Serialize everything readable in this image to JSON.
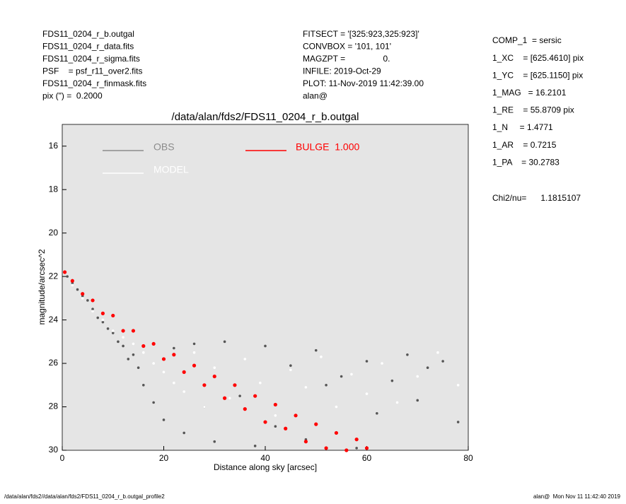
{
  "header": {
    "left": [
      "FDS11_0204_r_b.outgal",
      "FDS11_0204_r_data.fits",
      "FDS11_0204_r_sigma.fits",
      "PSF    = psf_r11_over2.fits",
      "FDS11_0204_r_finmask.fits",
      "pix (\") =  0.2000"
    ],
    "middle": [
      "FITSECT = '[325:923,325:923]'",
      "CONVBOX = '101, 101'",
      "MAGZPT =                0.",
      "INFILE: 2019-Oct-29",
      "PLOT: 11-Nov-2019 11:42:39.00",
      "alan@"
    ],
    "right": [
      "COMP_1  = sersic",
      "1_XC    = [625.4610] pix",
      "1_YC    = [625.1150] pix",
      "1_MAG   = 16.2101",
      "1_RE    = 55.8709 pix",
      "1_N     = 1.4771",
      "1_AR    = 0.7215",
      "1_PA    = 30.2783"
    ],
    "chi2": "Chi2/nu=      1.1815107"
  },
  "footer": {
    "left": "/data/alan/fds2//data/alan/fds2/FDS11_0204_r_b.outgal_profile2",
    "right": "alan@  Mon Nov 11 11:42:40 2019"
  },
  "chart_data": {
    "type": "scatter",
    "title": "/data/alan/fds2/FDS11_0204_r_b.outgal",
    "xlabel": "Distance along sky [arcsec]",
    "ylabel": "magnitude/arcsec^2",
    "xlim": [
      0,
      80
    ],
    "xticks": [
      0,
      20,
      40,
      60,
      80
    ],
    "ylim": [
      15,
      30
    ],
    "yticks": [
      16,
      18,
      20,
      22,
      24,
      26,
      28,
      30
    ],
    "y_inverted": true,
    "background": "#e5e5e5",
    "series": [
      {
        "name": "OBS",
        "color": "#555555",
        "legend_color": "#8c8c8c",
        "x": [
          1,
          2,
          3,
          4,
          5,
          6,
          7,
          8,
          9,
          10,
          11,
          12,
          13,
          14,
          15,
          16,
          18,
          20,
          22,
          24,
          26,
          28,
          30,
          32,
          35,
          38,
          40,
          42,
          45,
          48,
          50,
          52,
          55,
          58,
          60,
          62,
          65,
          68,
          70,
          72,
          75,
          78
        ],
        "values": [
          22.0,
          22.3,
          22.6,
          22.9,
          23.1,
          23.5,
          23.9,
          24.1,
          24.4,
          24.6,
          25.0,
          25.2,
          25.8,
          25.6,
          26.2,
          27.0,
          27.8,
          28.6,
          25.3,
          29.2,
          25.1,
          28.0,
          29.6,
          25.0,
          27.5,
          29.8,
          25.2,
          28.9,
          26.1,
          29.5,
          25.4,
          27.0,
          26.6,
          29.9,
          25.9,
          28.3,
          26.8,
          25.6,
          27.7,
          26.2,
          25.9,
          28.7
        ]
      },
      {
        "name": "MODEL",
        "color": "#ffffff",
        "legend_color": "#ffffff",
        "x": [
          2,
          4,
          6,
          8,
          10,
          12,
          14,
          16,
          18,
          20,
          22,
          24,
          26,
          28,
          30,
          33,
          36,
          39,
          42,
          45,
          48,
          51,
          54,
          57,
          60,
          63,
          66,
          70,
          74,
          78
        ],
        "values": [
          22.4,
          23.0,
          23.6,
          24.0,
          24.5,
          24.8,
          25.1,
          25.5,
          26.0,
          26.4,
          26.9,
          27.3,
          25.5,
          28.0,
          26.2,
          27.6,
          25.8,
          26.9,
          28.4,
          26.3,
          27.1,
          25.7,
          28.0,
          26.5,
          27.4,
          26.0,
          27.8,
          26.6,
          25.5,
          27.0
        ]
      },
      {
        "name": "BULGE  1.000",
        "color": "#ff0000",
        "legend_color": "#ff0000",
        "x": [
          0.5,
          2,
          4,
          6,
          8,
          10,
          12,
          14,
          16,
          18,
          20,
          22,
          24,
          26,
          28,
          30,
          32,
          34,
          36,
          38,
          40,
          42,
          44,
          46,
          48,
          50,
          52,
          54,
          56,
          58,
          60
        ],
        "values": [
          21.8,
          22.2,
          22.8,
          23.1,
          23.7,
          23.8,
          24.5,
          24.5,
          25.2,
          25.1,
          25.8,
          25.6,
          26.4,
          26.1,
          27.0,
          26.6,
          27.6,
          27.0,
          28.1,
          27.5,
          28.7,
          27.9,
          29.0,
          28.4,
          29.6,
          28.8,
          29.9,
          29.2,
          30.0,
          29.5,
          29.9
        ]
      }
    ]
  }
}
